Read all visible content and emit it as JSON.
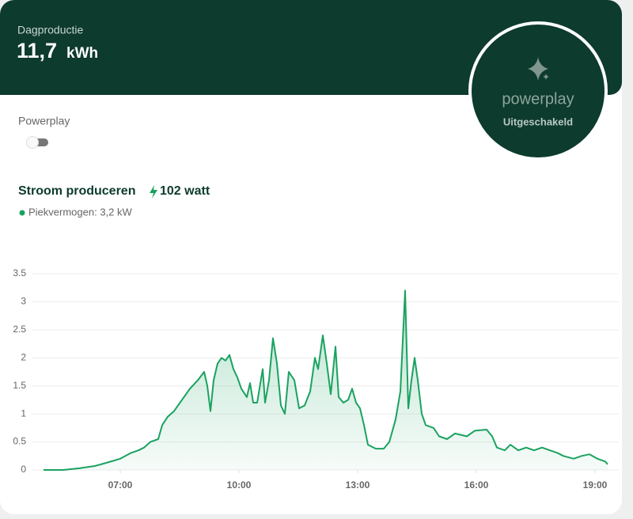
{
  "header": {
    "title": "Dagproductie",
    "value": "11,7",
    "unit": "kWh"
  },
  "powerplay_badge": {
    "brand": "powerplay",
    "status": "Uitgeschakeld"
  },
  "toggle": {
    "label": "Powerplay"
  },
  "production": {
    "title": "Stroom produceren",
    "current": "102 watt",
    "peak": "Piekvermogen: 3,2 kW"
  },
  "chart_data": {
    "type": "line",
    "x": [
      5.06,
      5.56,
      5.96,
      6.36,
      6.76,
      7.0,
      7.26,
      7.46,
      7.6,
      7.76,
      7.96,
      8.06,
      8.2,
      8.36,
      8.56,
      8.76,
      8.96,
      9.12,
      9.2,
      9.28,
      9.36,
      9.46,
      9.56,
      9.66,
      9.76,
      9.86,
      9.96,
      10.06,
      10.2,
      10.28,
      10.36,
      10.46,
      10.6,
      10.66,
      10.76,
      10.86,
      10.96,
      11.06,
      11.16,
      11.26,
      11.4,
      11.52,
      11.66,
      11.8,
      11.92,
      12.0,
      12.12,
      12.22,
      12.32,
      12.44,
      12.52,
      12.64,
      12.76,
      12.86,
      12.96,
      13.06,
      13.16,
      13.26,
      13.46,
      13.66,
      13.8,
      13.96,
      14.08,
      14.2,
      14.28,
      14.36,
      14.44,
      14.52,
      14.62,
      14.72,
      14.92,
      15.06,
      15.26,
      15.46,
      15.76,
      15.96,
      16.26,
      16.4,
      16.52,
      16.72,
      16.86,
      17.06,
      17.26,
      17.46,
      17.66,
      17.86,
      18.06,
      18.2,
      18.46,
      18.66,
      18.86,
      19.06,
      19.26,
      19.32
    ],
    "values": [
      0,
      0,
      0.03,
      0.07,
      0.15,
      0.2,
      0.3,
      0.35,
      0.4,
      0.5,
      0.55,
      0.8,
      0.95,
      1.05,
      1.25,
      1.45,
      1.6,
      1.75,
      1.5,
      1.05,
      1.6,
      1.9,
      2.0,
      1.95,
      2.05,
      1.8,
      1.65,
      1.45,
      1.3,
      1.55,
      1.2,
      1.2,
      1.8,
      1.2,
      1.6,
      2.35,
      1.9,
      1.15,
      1.0,
      1.75,
      1.6,
      1.1,
      1.15,
      1.4,
      2.0,
      1.8,
      2.4,
      1.9,
      1.35,
      2.2,
      1.3,
      1.2,
      1.25,
      1.45,
      1.2,
      1.1,
      0.8,
      0.45,
      0.38,
      0.38,
      0.5,
      0.9,
      1.4,
      3.2,
      1.1,
      1.6,
      2.0,
      1.6,
      1.0,
      0.8,
      0.75,
      0.6,
      0.55,
      0.65,
      0.6,
      0.7,
      0.72,
      0.6,
      0.4,
      0.35,
      0.45,
      0.35,
      0.4,
      0.35,
      0.4,
      0.35,
      0.3,
      0.25,
      0.2,
      0.25,
      0.28,
      0.2,
      0.15,
      0.1
    ],
    "color": "#1aa260",
    "xlim": [
      4.76,
      19.6
    ],
    "xticks": [
      {
        "value": 7,
        "label": "07:00"
      },
      {
        "value": 10,
        "label": "10:00"
      },
      {
        "value": 13,
        "label": "13:00"
      },
      {
        "value": 16,
        "label": "16:00"
      },
      {
        "value": 19,
        "label": "19:00"
      }
    ],
    "ylim": [
      0,
      3.5
    ],
    "yticks": [
      0,
      0.5,
      1,
      1.5,
      2,
      2.5,
      3,
      3.5
    ],
    "grid": true
  }
}
